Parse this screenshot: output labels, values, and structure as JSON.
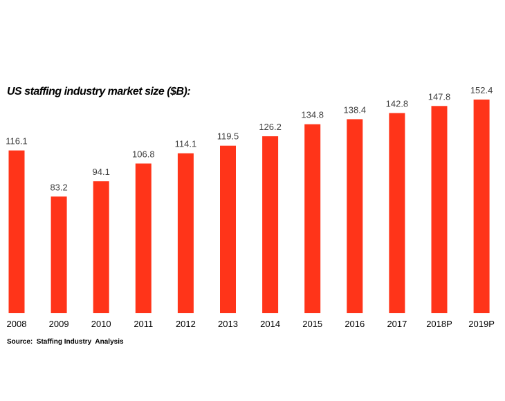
{
  "chart_data": {
    "type": "bar",
    "title": "US staffing industry market size ($B):",
    "categories": [
      "2008",
      "2009",
      "2010",
      "2011",
      "2012",
      "2013",
      "2014",
      "2015",
      "2016",
      "2017",
      "2018P",
      "2019P"
    ],
    "values": [
      116.1,
      83.2,
      94.1,
      106.8,
      114.1,
      119.5,
      126.2,
      134.8,
      138.4,
      142.8,
      147.8,
      152.4
    ],
    "data_labels": [
      "116.1",
      "83.2",
      "94.1",
      "106.8",
      "114.1",
      "119.5",
      "126.2",
      "134.8",
      "138.4",
      "142.8",
      "147.8",
      "152.4"
    ],
    "ylim": [
      0,
      152.4
    ],
    "grid": false,
    "legend": "none",
    "bar_color": "#ff3419"
  },
  "source": "Source:  Staffing Industry  Analysis"
}
